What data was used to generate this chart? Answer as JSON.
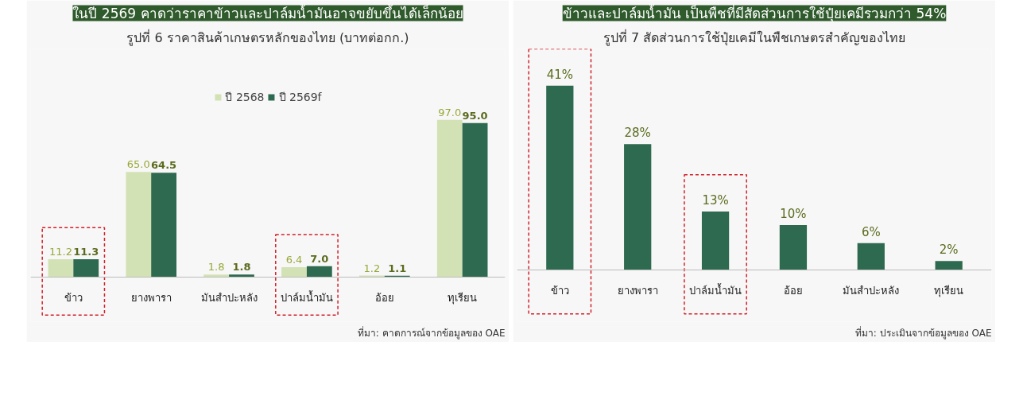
{
  "chart_data": [
    {
      "type": "bar",
      "title": "ในปี 2569 คาดว่าราคาข้าวและปาล์มน้ำมันอาจขยับขึ้นได้เล็กน้อย",
      "subtitle": "รูปที่ 6 ราคาสินค้าเกษตรหลักของไทย (บาทต่อกก.)",
      "categories": [
        "ข้าว",
        "ยางพารา",
        "มันสำปะหลัง",
        "ปาล์มน้ำมัน",
        "อ้อย",
        "ทุเรียน"
      ],
      "series": [
        {
          "name": "ปี 2568",
          "color": "#d3e2b4",
          "values": [
            11.2,
            65.0,
            1.8,
            6.4,
            1.2,
            97.0
          ],
          "value_labels": [
            "11.2",
            "65.0",
            "1.8",
            "6.4",
            "1.2",
            "97.0"
          ]
        },
        {
          "name": "ปี 2569f",
          "color": "#2e6a4f",
          "values": [
            11.3,
            64.5,
            1.8,
            7.0,
            1.1,
            95.0
          ],
          "value_labels": [
            "11.3",
            "64.5",
            "1.8",
            "7.0",
            "1.1",
            "95.0"
          ]
        }
      ],
      "legend": "top",
      "grid": false,
      "annotations": [
        "ที่มา: คาดการณ์จากข้อมูลของ OAE"
      ]
    },
    {
      "type": "bar",
      "title": "ข้าวและปาล์มน้ำมัน เป็นพืชที่มีสัดส่วนการใช้ปุ๋ยเคมีรวมกว่า 54%",
      "subtitle": "รูปที่ 7 สัดส่วนการใช้ปุ๋ยเคมีในพืชเกษตรสำคัญของไทย",
      "categories": [
        "ข้าว",
        "ยางพารา",
        "ปาล์มน้ำมัน",
        "อ้อย",
        "มันสำปะหลัง",
        "ทุเรียน"
      ],
      "values": [
        41,
        28,
        13,
        10,
        6,
        2
      ],
      "color": "#2e6a4f",
      "value_labels": [
        "41%",
        "28%",
        "13%",
        "10%",
        "6%",
        "2%"
      ],
      "grid": false,
      "annotations": [
        "ที่มา: ประเมินจากข้อมูลของ OAE"
      ]
    }
  ]
}
